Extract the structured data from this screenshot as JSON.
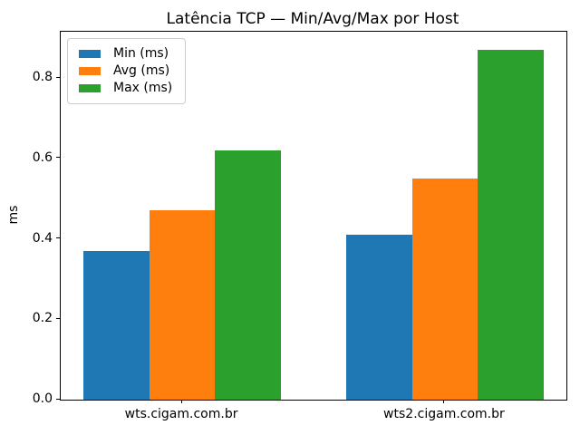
{
  "chart_data": {
    "type": "bar",
    "title": "Latência TCP — Min/Avg/Max por Host",
    "xlabel": "",
    "ylabel": "ms",
    "categories": [
      "wts.cigam.com.br",
      "wts2.cigam.com.br"
    ],
    "series": [
      {
        "name": "Min (ms)",
        "color": "#1f77b4",
        "values": [
          0.37,
          0.41
        ]
      },
      {
        "name": "Avg (ms)",
        "color": "#ff7f0e",
        "values": [
          0.47,
          0.55
        ]
      },
      {
        "name": "Max (ms)",
        "color": "#2ca02c",
        "values": [
          0.62,
          0.87
        ]
      }
    ],
    "yticks": [
      "0.0",
      "0.2",
      "0.4",
      "0.6",
      "0.8"
    ],
    "ylim": [
      0,
      0.915
    ],
    "xlim": [
      -0.4625,
      1.4625
    ],
    "bar_width": 0.25,
    "legend_position": "upper left",
    "grid": false,
    "background_color": "#ffffff",
    "spine_color": "#000000"
  }
}
